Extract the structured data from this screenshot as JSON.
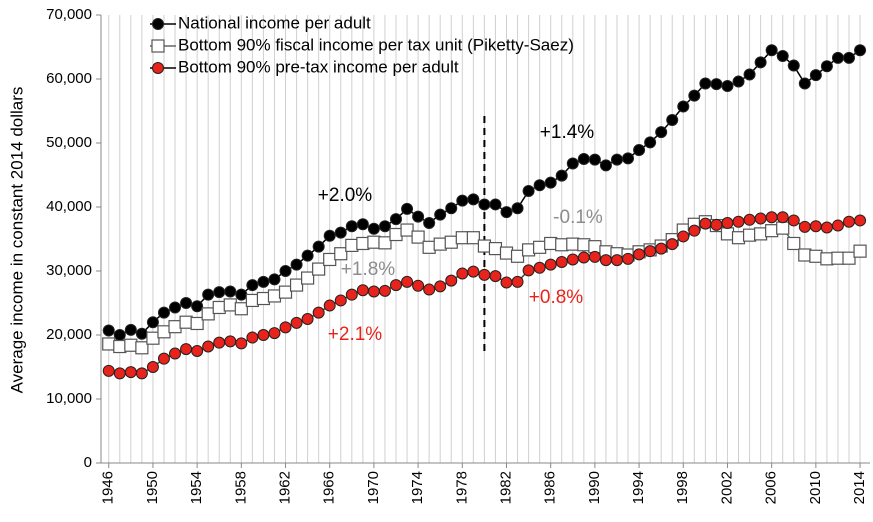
{
  "chart_data": {
    "type": "line",
    "y_label": "Average income in constant 2014 dollars",
    "x": [
      1946,
      1947,
      1948,
      1949,
      1950,
      1951,
      1952,
      1953,
      1954,
      1955,
      1956,
      1957,
      1958,
      1959,
      1960,
      1961,
      1962,
      1963,
      1964,
      1965,
      1966,
      1967,
      1968,
      1969,
      1970,
      1971,
      1972,
      1973,
      1974,
      1975,
      1976,
      1977,
      1978,
      1979,
      1980,
      1981,
      1982,
      1983,
      1984,
      1985,
      1986,
      1987,
      1988,
      1989,
      1990,
      1991,
      1992,
      1993,
      1994,
      1995,
      1996,
      1997,
      1998,
      1999,
      2000,
      2001,
      2002,
      2003,
      2004,
      2005,
      2006,
      2007,
      2008,
      2009,
      2010,
      2011,
      2012,
      2013,
      2014
    ],
    "xlim": [
      1945.3,
      2014.9
    ],
    "xticks": [
      1946,
      1950,
      1954,
      1958,
      1962,
      1966,
      1970,
      1974,
      1978,
      1982,
      1986,
      1990,
      1994,
      1998,
      2002,
      2006,
      2010,
      2014
    ],
    "ylim": [
      0,
      70000
    ],
    "yticks": [
      0,
      {
        "value": 10000,
        "label": "10,000"
      },
      {
        "value": 20000,
        "label": "20,000"
      },
      {
        "value": 30000,
        "label": "30,000"
      },
      {
        "value": 40000,
        "label": "40,000"
      },
      {
        "value": 50000,
        "label": "50,000"
      },
      {
        "value": 60000,
        "label": "60,000"
      },
      {
        "value": 70000,
        "label": "70,000"
      }
    ],
    "grid": "x",
    "legend": "upper left",
    "series": [
      {
        "name": "National income per adult",
        "color": "#000000",
        "marker": "circle",
        "values": [
          20700,
          20000,
          20800,
          20200,
          22000,
          23500,
          24300,
          25000,
          24500,
          26300,
          26700,
          26800,
          26300,
          27800,
          28300,
          28700,
          30000,
          31000,
          32400,
          33800,
          35500,
          36000,
          37000,
          37300,
          36600,
          37000,
          38100,
          39700,
          38500,
          37500,
          38800,
          39800,
          41000,
          41200,
          40400,
          40400,
          39200,
          39800,
          42500,
          43400,
          43800,
          44900,
          46800,
          47500,
          47400,
          46500,
          47400,
          47600,
          48900,
          50100,
          51700,
          53600,
          55700,
          57400,
          59300,
          59200,
          58900,
          59600,
          60700,
          62600,
          64500,
          63600,
          62100,
          59300,
          60600,
          62000,
          63300,
          63300,
          64500
        ]
      },
      {
        "name": "Bottom 90% fiscal income per tax unit (Piketty-Saez)",
        "color": "#ffffff",
        "marker": "square",
        "values": [
          18600,
          18200,
          18400,
          18000,
          19500,
          20500,
          21300,
          22000,
          21800,
          23300,
          24300,
          24700,
          24100,
          25400,
          25700,
          26100,
          26700,
          27800,
          28900,
          30300,
          31800,
          32700,
          34000,
          34300,
          34500,
          34400,
          35700,
          36400,
          35300,
          33700,
          34200,
          34500,
          35200,
          35200,
          33900,
          33500,
          32800,
          32300,
          33300,
          33700,
          34300,
          34100,
          34200,
          34100,
          33800,
          33000,
          32700,
          32500,
          33000,
          33300,
          33900,
          34900,
          36400,
          37300,
          37700,
          37100,
          35800,
          35200,
          35600,
          35800,
          36300,
          36700,
          34300,
          32500,
          32300,
          31900,
          32000,
          32000,
          33100
        ]
      },
      {
        "name": "Bottom 90% pre-tax income per adult",
        "color": "#e8231b",
        "marker": "circle",
        "values": [
          14400,
          14000,
          14200,
          14000,
          15000,
          16300,
          17100,
          17800,
          17500,
          18200,
          18800,
          19000,
          18700,
          19600,
          20000,
          20300,
          21200,
          21900,
          22500,
          23500,
          24600,
          25400,
          26300,
          27000,
          26800,
          26900,
          27800,
          28300,
          27700,
          27100,
          27600,
          28500,
          29600,
          29900,
          29400,
          29200,
          28200,
          28300,
          30100,
          30500,
          31000,
          31400,
          31800,
          32100,
          32200,
          31700,
          31700,
          31900,
          32600,
          33100,
          33500,
          34200,
          35400,
          36300,
          37400,
          37200,
          37500,
          37700,
          38000,
          38200,
          38400,
          38400,
          37900,
          36900,
          37000,
          36800,
          37100,
          37700,
          37900
        ]
      }
    ],
    "vline": {
      "x": 1980,
      "from": 17500,
      "to": 54500
    },
    "annotations": [
      {
        "text": "+2.0%",
        "color": "#000000"
      },
      {
        "text": "+1.4%",
        "color": "#000000"
      },
      {
        "text": "-0.1%",
        "color": "#8c8c8c"
      },
      {
        "text": "+1.8%",
        "color": "#8c8c8c"
      },
      {
        "text": "+0.8%",
        "color": "#e8231b"
      },
      {
        "text": "+2.1%",
        "color": "#e8231b"
      }
    ]
  }
}
